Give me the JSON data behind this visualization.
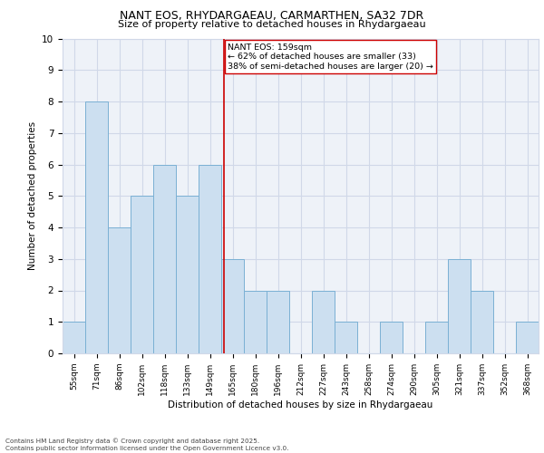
{
  "title1": "NANT EOS, RHYDARGAEAU, CARMARTHEN, SA32 7DR",
  "title2": "Size of property relative to detached houses in Rhydargaeau",
  "xlabel": "Distribution of detached houses by size in Rhydargaeau",
  "ylabel": "Number of detached properties",
  "categories": [
    "55sqm",
    "71sqm",
    "86sqm",
    "102sqm",
    "118sqm",
    "133sqm",
    "149sqm",
    "165sqm",
    "180sqm",
    "196sqm",
    "212sqm",
    "227sqm",
    "243sqm",
    "258sqm",
    "274sqm",
    "290sqm",
    "305sqm",
    "321sqm",
    "337sqm",
    "352sqm",
    "368sqm"
  ],
  "values": [
    1,
    8,
    4,
    5,
    6,
    5,
    6,
    3,
    2,
    2,
    0,
    2,
    1,
    0,
    1,
    0,
    1,
    3,
    2,
    0,
    1
  ],
  "bar_color": "#ccdff0",
  "bar_edge_color": "#7ab0d4",
  "annotation_line_color": "#cc0000",
  "annotation_text": "NANT EOS: 159sqm\n← 62% of detached houses are smaller (33)\n38% of semi-detached houses are larger (20) →",
  "annotation_box_color": "#ffffff",
  "annotation_box_edge": "#cc0000",
  "ylim": [
    0,
    10
  ],
  "yticks": [
    0,
    1,
    2,
    3,
    4,
    5,
    6,
    7,
    8,
    9,
    10
  ],
  "footer": "Contains HM Land Registry data © Crown copyright and database right 2025.\nContains public sector information licensed under the Open Government Licence v3.0.",
  "grid_color": "#d0d8e8",
  "background_color": "#eef2f8"
}
